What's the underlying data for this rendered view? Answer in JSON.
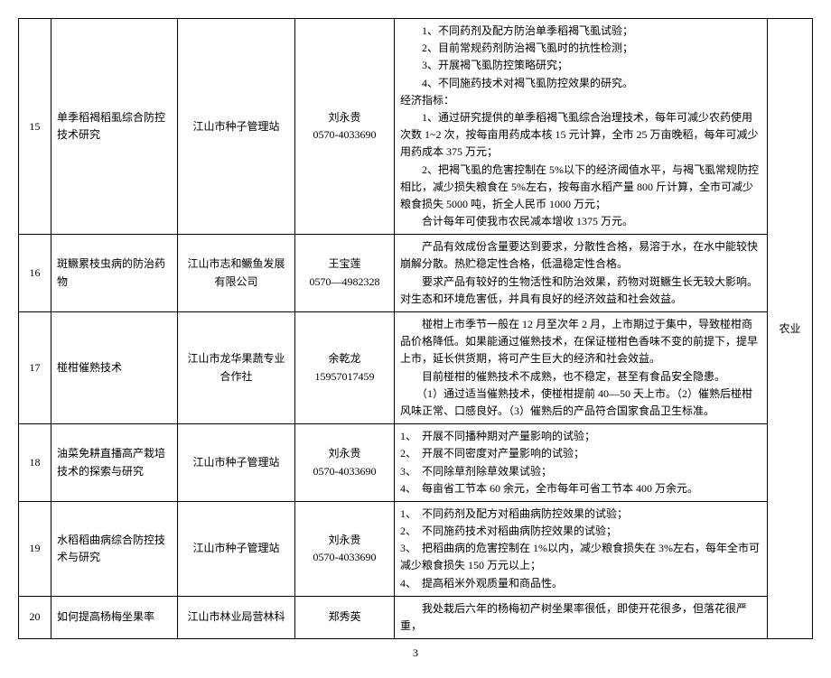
{
  "page_number": "3",
  "category_label": "农业",
  "rows": [
    {
      "id": "15",
      "name": "单季稻褐稻虱综合防控技术研究",
      "org": "江山市种子管理站",
      "contact_name": "刘永贵",
      "contact_phone": "0570-4033690",
      "desc_lines": [
        "　　1、不同药剂及配方防治单季稻褐飞虱试验；",
        "　　2、目前常规药剂防治褐飞虱时的抗性检测；",
        "　　3、开展褐飞虱防控策略研究；",
        "　　4、不同施药技术对褐飞虱防控效果的研究。",
        "经济指标：",
        "　　1、通过研究提供的单季稻褐飞虱综合治理技术，每年可减少农药使用次数 1~2 次，按每亩用药成本核 15 元计算，全市 25 万亩晚稻，每年可减少用药成本 375 万元；",
        "　　2、把褐飞虱的危害控制在 5%以下的经济阈值水平，与褐飞虱常规防控相比，减少损失粮食在 5%左右，按每亩水稻产量 800 斤计算，全市可减少粮食损失 5000 吨，折全人民币 1000 万元；",
        "　　合计每年可使我市农民减本增收 1375 万元。"
      ]
    },
    {
      "id": "16",
      "name": "斑鳜累枝虫病的防治药物",
      "org": "江山市志和鳜鱼发展有限公司",
      "contact_name": "王宝莲",
      "contact_phone": "0570—4982328",
      "desc_lines": [
        "　　产品有效成份含量要达到要求，分散性合格，易溶于水，在水中能较快崩解分散。热贮稳定性合格，低温稳定性合格。",
        "　　要求产品有较好的生物活性和防治效果，药物对斑鳜生长无较大影响。对生态和环境危害低，并具有良好的经济效益和社会效益。"
      ]
    },
    {
      "id": "17",
      "name": "椪柑催熟技术",
      "org": "江山市龙华果蔬专业合作社",
      "contact_name": "余乾龙",
      "contact_phone": "15957017459",
      "desc_lines": [
        "　　椪柑上市季节一般在 12 月至次年 2 月，上市期过于集中，导致椪柑商品价格降低。如果能通过催熟技术，在保证椪柑色香味不变的前提下，提早上市，延长供货期，将可产生巨大的经济和社会效益。",
        "　　目前椪柑的催熟技术不成熟，也不稳定，甚至有食品安全隐患。",
        "　　（1）通过适当催熟技术，使椪柑提前 40—50 天上市。（2）催熟后椪柑风味正常、口感良好。（3）催熟后的产品符合国家食品卫生标准。"
      ]
    },
    {
      "id": "18",
      "name": "油菜免耕直播高产栽培技术的探索与研究",
      "org": "江山市种子管理站",
      "contact_name": "刘永贵",
      "contact_phone": "0570-4033690",
      "desc_lines": [
        "1、　开展不同播种期对产量影响的试验；",
        "2、　开展不同密度对产量影响的试验；",
        "3、　不同除草剂除草效果试验；",
        "4、　每亩省工节本 60 余元，全市每年可省工节本 400 万余元。"
      ]
    },
    {
      "id": "19",
      "name": "水稻稻曲病综合防控技术与研究",
      "org": "江山市种子管理站",
      "contact_name": "刘永贵",
      "contact_phone": "0570-4033690",
      "desc_lines": [
        "1、　不同药剂及配方对稻曲病防控效果的试验；",
        "2、　不同施药技术对稻曲病防控效果的试验；",
        "3、　把稻曲病的危害控制在 1%以内，减少粮食损失在 3%左右，每年全市可减少粮食损失 150 万元以上；",
        "4、　提高稻米外观质量和商品性。"
      ]
    },
    {
      "id": "20",
      "name": "如何提高杨梅坐果率",
      "org": "江山市林业局营林科",
      "contact_name": "郑秀英",
      "contact_phone": "",
      "desc_lines": [
        "　　我处栽后六年的杨梅初产树坐果率很低，即使开花很多，但落花很严重，"
      ]
    }
  ]
}
